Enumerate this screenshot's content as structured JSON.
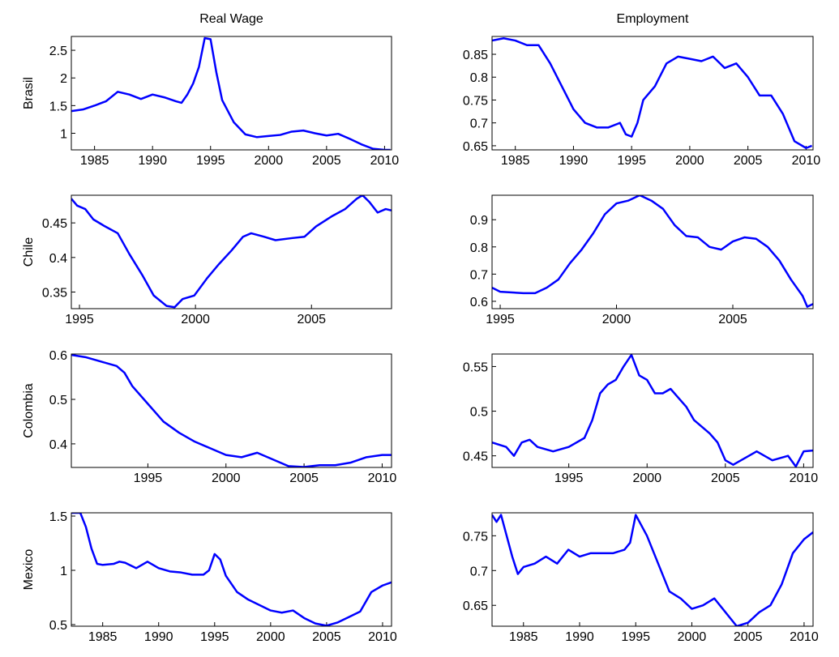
{
  "chart_data": [
    {
      "type": "line",
      "title": "Real Wage",
      "ylabel": "Brasil",
      "color": "#0000ff",
      "x": [
        1983,
        1984,
        1985,
        1986,
        1987,
        1988,
        1989,
        1990,
        1991,
        1992,
        1992.5,
        1993,
        1993.5,
        1994,
        1994.5,
        1995,
        1995.5,
        1996,
        1997,
        1998,
        1999,
        2000,
        2001,
        2002,
        2003,
        2004,
        2005,
        2006,
        2007,
        2008,
        2009,
        2010,
        2010.5
      ],
      "values": [
        1.4,
        1.43,
        1.5,
        1.58,
        1.75,
        1.7,
        1.62,
        1.7,
        1.65,
        1.58,
        1.55,
        1.7,
        1.9,
        2.2,
        2.72,
        2.7,
        2.1,
        1.6,
        1.2,
        0.98,
        0.93,
        0.95,
        0.97,
        1.03,
        1.05,
        1.0,
        0.96,
        0.99,
        0.9,
        0.8,
        0.72,
        0.7,
        0.7
      ],
      "xlim": [
        1983,
        2010.6
      ],
      "ylim": [
        0.7,
        2.75
      ],
      "xticks": [
        1985,
        1990,
        1995,
        2000,
        2005,
        2010
      ],
      "yticks": [
        1,
        1.5,
        2,
        2.5
      ]
    },
    {
      "type": "line",
      "title": "Employment",
      "color": "#0000ff",
      "x": [
        1983,
        1984,
        1985,
        1986,
        1987,
        1988,
        1989,
        1990,
        1991,
        1992,
        1993,
        1994,
        1994.5,
        1995,
        1995.5,
        1996,
        1997,
        1998,
        1999,
        2000,
        2001,
        2002,
        2003,
        2004,
        2005,
        2006,
        2007,
        2008,
        2009,
        2010,
        2010.5
      ],
      "values": [
        0.88,
        0.885,
        0.88,
        0.87,
        0.87,
        0.83,
        0.78,
        0.73,
        0.7,
        0.69,
        0.69,
        0.7,
        0.675,
        0.67,
        0.7,
        0.75,
        0.78,
        0.83,
        0.845,
        0.84,
        0.835,
        0.845,
        0.82,
        0.83,
        0.8,
        0.76,
        0.76,
        0.72,
        0.66,
        0.645,
        0.65
      ],
      "xlim": [
        1983,
        2010.6
      ],
      "ylim": [
        0.641,
        0.889
      ],
      "xticks": [
        1985,
        1990,
        1995,
        2000,
        2005,
        2010
      ],
      "yticks": [
        0.65,
        0.7,
        0.75,
        0.8,
        0.85
      ]
    },
    {
      "type": "line",
      "ylabel": "Chile",
      "color": "#0000ff",
      "x": [
        1994.65,
        1994.9,
        1995.25,
        1995.6,
        1996.1,
        1996.65,
        1997.15,
        1997.7,
        1998.2,
        1998.75,
        1999.1,
        1999.45,
        1999.95,
        2000.5,
        2001.0,
        2001.55,
        2002.05,
        2002.4,
        2002.95,
        2003.45,
        2004.15,
        2004.7,
        2005.2,
        2005.9,
        2006.45,
        2006.95,
        2007.2,
        2007.5,
        2007.85,
        2008.2,
        2008.45
      ],
      "values": [
        0.485,
        0.475,
        0.47,
        0.455,
        0.445,
        0.435,
        0.405,
        0.375,
        0.345,
        0.33,
        0.328,
        0.34,
        0.345,
        0.37,
        0.39,
        0.41,
        0.43,
        0.435,
        0.43,
        0.425,
        0.428,
        0.43,
        0.445,
        0.46,
        0.47,
        0.485,
        0.49,
        0.48,
        0.465,
        0.47,
        0.468
      ],
      "xlim": [
        1994.65,
        2008.45
      ],
      "ylim": [
        0.326,
        0.49
      ],
      "xticks": [
        1995,
        2000,
        2005
      ],
      "yticks": [
        0.35,
        0.4,
        0.45
      ]
    },
    {
      "type": "line",
      "color": "#0000ff",
      "x": [
        1994.65,
        1995,
        1996,
        1996.5,
        1997,
        1997.5,
        1998,
        1998.5,
        1999,
        1999.5,
        2000,
        2000.5,
        2001,
        2001.5,
        2002,
        2002.5,
        2003,
        2003.5,
        2004,
        2004.5,
        2005,
        2005.5,
        2006,
        2006.5,
        2007,
        2007.5,
        2008,
        2008.2,
        2008.45
      ],
      "values": [
        0.65,
        0.635,
        0.63,
        0.63,
        0.65,
        0.68,
        0.74,
        0.79,
        0.85,
        0.92,
        0.96,
        0.97,
        0.99,
        0.97,
        0.94,
        0.88,
        0.84,
        0.835,
        0.8,
        0.79,
        0.82,
        0.835,
        0.83,
        0.8,
        0.75,
        0.68,
        0.62,
        0.58,
        0.59
      ],
      "xlim": [
        1994.65,
        2008.45
      ],
      "ylim": [
        0.573,
        0.99
      ],
      "xticks": [
        1995,
        2000,
        2005
      ],
      "yticks": [
        0.6,
        0.7,
        0.8,
        0.9
      ]
    },
    {
      "type": "line",
      "ylabel": "Colombia",
      "color": "#0000ff",
      "x": [
        1990.1,
        1991,
        1992,
        1993,
        1993.5,
        1994,
        1995,
        1996,
        1997,
        1998,
        1999,
        2000,
        2001,
        2002,
        2003,
        2004,
        2005,
        2006,
        2007,
        2008,
        2009,
        2010,
        2010.6
      ],
      "values": [
        0.6,
        0.595,
        0.585,
        0.575,
        0.56,
        0.53,
        0.49,
        0.45,
        0.425,
        0.405,
        0.39,
        0.375,
        0.37,
        0.38,
        0.365,
        0.35,
        0.348,
        0.352,
        0.352,
        0.358,
        0.37,
        0.375,
        0.375
      ],
      "xlim": [
        1990.1,
        2010.6
      ],
      "ylim": [
        0.347,
        0.602
      ],
      "xticks": [
        1995,
        2000,
        2005,
        2010
      ],
      "yticks": [
        0.4,
        0.5,
        0.6
      ]
    },
    {
      "type": "line",
      "color": "#0000ff",
      "x": [
        1990.1,
        1991,
        1991.5,
        1992,
        1992.5,
        1993,
        1994,
        1995,
        1996,
        1996.5,
        1997,
        1997.5,
        1998,
        1998.5,
        1999,
        1999.5,
        2000,
        2000.5,
        2001,
        2001.5,
        2002,
        2002.5,
        2003,
        2004,
        2004.5,
        2005,
        2005.5,
        2006,
        2007,
        2008,
        2009,
        2009.5,
        2010,
        2010.6
      ],
      "values": [
        0.465,
        0.46,
        0.45,
        0.465,
        0.468,
        0.46,
        0.455,
        0.46,
        0.47,
        0.49,
        0.52,
        0.53,
        0.535,
        0.55,
        0.563,
        0.54,
        0.535,
        0.52,
        0.52,
        0.525,
        0.515,
        0.505,
        0.49,
        0.475,
        0.465,
        0.445,
        0.44,
        0.445,
        0.455,
        0.445,
        0.45,
        0.438,
        0.455,
        0.456
      ],
      "xlim": [
        1990.1,
        2010.6
      ],
      "ylim": [
        0.437,
        0.564
      ],
      "xticks": [
        1995,
        2000,
        2005,
        2010
      ],
      "yticks": [
        0.45,
        0.5,
        0.55
      ]
    },
    {
      "type": "line",
      "ylabel": "Mexico",
      "color": "#0000ff",
      "x": [
        1982.2,
        1983,
        1983.5,
        1984,
        1984.5,
        1985,
        1986,
        1986.5,
        1987,
        1988,
        1989,
        1990,
        1991,
        1992,
        1993,
        1994,
        1994.5,
        1995,
        1995.5,
        1996,
        1997,
        1998,
        1999,
        2000,
        2001,
        2002,
        2003,
        2004,
        2005,
        2006,
        2007,
        2008,
        2009,
        2010,
        2010.8
      ],
      "values": [
        1.53,
        1.53,
        1.4,
        1.2,
        1.06,
        1.05,
        1.06,
        1.08,
        1.07,
        1.02,
        1.08,
        1.02,
        0.99,
        0.98,
        0.96,
        0.96,
        1.0,
        1.15,
        1.1,
        0.95,
        0.8,
        0.73,
        0.68,
        0.63,
        0.61,
        0.63,
        0.56,
        0.51,
        0.49,
        0.52,
        0.57,
        0.62,
        0.8,
        0.86,
        0.89
      ],
      "xlim": [
        1982.2,
        2010.8
      ],
      "ylim": [
        0.485,
        1.53
      ],
      "xticks": [
        1985,
        1990,
        1995,
        2000,
        2005,
        2010
      ],
      "yticks": [
        0.5,
        1,
        1.5
      ]
    },
    {
      "type": "line",
      "color": "#0000ff",
      "x": [
        1982.2,
        1982.6,
        1983,
        1983.5,
        1984,
        1984.5,
        1985,
        1986,
        1987,
        1988,
        1989,
        1990,
        1991,
        1992,
        1993,
        1994,
        1994.5,
        1995,
        1996,
        1997,
        1998,
        1999,
        2000,
        2001,
        2002,
        2003,
        2004,
        2005,
        2006,
        2007,
        2008,
        2009,
        2010,
        2010.8
      ],
      "values": [
        0.78,
        0.77,
        0.78,
        0.75,
        0.72,
        0.695,
        0.705,
        0.71,
        0.72,
        0.71,
        0.73,
        0.72,
        0.725,
        0.725,
        0.725,
        0.73,
        0.74,
        0.78,
        0.75,
        0.71,
        0.67,
        0.66,
        0.645,
        0.65,
        0.66,
        0.64,
        0.62,
        0.625,
        0.64,
        0.65,
        0.68,
        0.725,
        0.745,
        0.755
      ],
      "xlim": [
        1982.2,
        2010.8
      ],
      "ylim": [
        0.62,
        0.783
      ],
      "xticks": [
        1985,
        1990,
        1995,
        2000,
        2005,
        2010
      ],
      "yticks": [
        0.65,
        0.7,
        0.75
      ]
    }
  ]
}
